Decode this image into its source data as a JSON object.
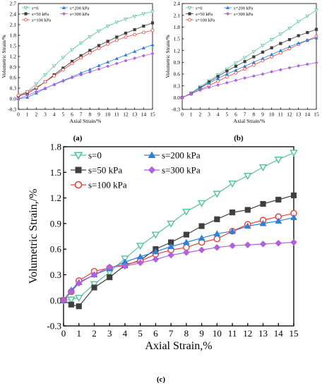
{
  "panel_labels": [
    "(a)",
    "(b)",
    "(c)"
  ],
  "chart_data": [
    {
      "type": "line",
      "panel": "(a)",
      "title": "",
      "xlabel": "Axial Strain/%",
      "ylabel": "Volumetric Strain/%",
      "xlim": [
        0,
        15
      ],
      "ylim": [
        -0.3,
        2.7
      ],
      "xticks": [
        0,
        1,
        2,
        3,
        4,
        5,
        6,
        7,
        8,
        9,
        10,
        11,
        12,
        13,
        14,
        15
      ],
      "yticks": [
        -0.3,
        0.0,
        0.3,
        0.6,
        0.9,
        1.2,
        1.5,
        1.8,
        2.1,
        2.4,
        2.7
      ],
      "ytick_labels": [
        "-0.3",
        "0.0",
        "0.3",
        "0.6",
        "0.9",
        "1.2",
        "1.5",
        "1.8",
        "2.1",
        "2.4",
        "2.7"
      ],
      "grid": false,
      "legend": {
        "placement": "top-left",
        "columns": 2,
        "order": [
          0,
          3,
          1,
          4,
          2
        ]
      },
      "series": [
        {
          "name": "s=0",
          "marker": "triangle-down-open",
          "color": "#55c39a",
          "x": [
            0,
            1,
            2,
            3,
            4,
            5,
            6,
            7,
            8,
            9,
            10,
            11,
            12,
            13,
            14,
            15
          ],
          "y": [
            0.05,
            0.2,
            0.42,
            0.68,
            0.93,
            1.17,
            1.39,
            1.58,
            1.76,
            1.92,
            2.06,
            2.17,
            2.26,
            2.34,
            2.41,
            2.47
          ]
        },
        {
          "name": "s=50 kPa",
          "marker": "square-filled",
          "color": "#3f3f3f",
          "x": [
            0,
            1,
            2,
            3,
            4,
            5,
            6,
            7,
            8,
            9,
            10,
            11,
            12,
            13,
            14,
            15
          ],
          "y": [
            0.08,
            0.15,
            0.3,
            0.48,
            0.68,
            0.87,
            1.06,
            1.22,
            1.37,
            1.51,
            1.63,
            1.75,
            1.86,
            1.96,
            2.06,
            2.15
          ]
        },
        {
          "name": "s=100 kPa",
          "marker": "circle-open",
          "color": "#e8413c",
          "x": [
            0,
            1,
            2,
            3,
            4,
            5,
            6,
            7,
            8,
            9,
            10,
            11,
            12,
            13,
            14,
            15
          ],
          "y": [
            0.1,
            0.2,
            0.32,
            0.48,
            0.65,
            0.82,
            1.0,
            1.16,
            1.3,
            1.43,
            1.55,
            1.66,
            1.75,
            1.82,
            1.88,
            1.94
          ]
        },
        {
          "name": "s=200 kPa",
          "marker": "triangle-up-filled",
          "color": "#2f7fd8",
          "x": [
            0,
            1,
            2,
            3,
            4,
            5,
            6,
            7,
            8,
            9,
            10,
            11,
            12,
            13,
            14,
            15
          ],
          "y": [
            0.0,
            0.04,
            0.16,
            0.29,
            0.41,
            0.52,
            0.62,
            0.73,
            0.83,
            0.94,
            1.04,
            1.14,
            1.24,
            1.34,
            1.44,
            1.53
          ]
        },
        {
          "name": "s=300 kPa",
          "marker": "diamond-filled",
          "color": "#b260e0",
          "x": [
            0,
            1,
            2,
            3,
            4,
            5,
            6,
            7,
            8,
            9,
            10,
            11,
            12,
            13,
            14,
            15
          ],
          "y": [
            0.0,
            0.1,
            0.2,
            0.3,
            0.4,
            0.5,
            0.6,
            0.68,
            0.76,
            0.84,
            0.92,
            1.0,
            1.08,
            1.15,
            1.22,
            1.28
          ]
        }
      ]
    },
    {
      "type": "line",
      "panel": "(b)",
      "title": "",
      "xlabel": "Axial Strain/%",
      "ylabel": "Volumetric Strain/%",
      "xlim": [
        0,
        15
      ],
      "ylim": [
        -0.3,
        2.4
      ],
      "xticks": [
        0,
        1,
        2,
        3,
        4,
        5,
        6,
        7,
        8,
        9,
        10,
        11,
        12,
        13,
        14,
        15
      ],
      "yticks": [
        -0.3,
        0.0,
        0.3,
        0.6,
        0.9,
        1.2,
        1.5,
        1.8,
        2.1,
        2.4
      ],
      "ytick_labels": [
        "-0.3",
        "0.0",
        "0.3",
        "0.6",
        "0.9",
        "1.2",
        "1.5",
        "1.8",
        "2.1",
        "2.4"
      ],
      "grid": false,
      "legend": {
        "placement": "top-left",
        "columns": 2,
        "order": [
          0,
          3,
          1,
          4,
          2
        ]
      },
      "series": [
        {
          "name": "s=0",
          "marker": "triangle-down-open",
          "color": "#55c39a",
          "x": [
            0,
            1,
            2,
            3,
            4,
            5,
            6,
            7,
            8,
            9,
            10,
            11,
            12,
            13,
            14,
            15
          ],
          "y": [
            0.0,
            0.12,
            0.28,
            0.43,
            0.58,
            0.73,
            0.88,
            1.02,
            1.17,
            1.33,
            1.48,
            1.62,
            1.77,
            1.94,
            2.08,
            2.23
          ]
        },
        {
          "name": "s=50 kPa",
          "marker": "square-filled",
          "color": "#3f3f3f",
          "x": [
            0,
            1,
            2,
            3,
            4,
            5,
            6,
            7,
            8,
            9,
            10,
            11,
            12,
            13,
            14,
            15
          ],
          "y": [
            0.0,
            0.1,
            0.25,
            0.4,
            0.54,
            0.68,
            0.8,
            0.92,
            1.04,
            1.16,
            1.27,
            1.38,
            1.48,
            1.58,
            1.66,
            1.74
          ]
        },
        {
          "name": "s=100 kPa",
          "marker": "circle-open",
          "color": "#e8413c",
          "x": [
            0,
            1,
            2,
            3,
            4,
            5,
            6,
            7,
            8,
            9,
            10,
            11,
            12,
            13,
            14,
            15
          ],
          "y": [
            0.0,
            0.09,
            0.2,
            0.31,
            0.42,
            0.53,
            0.63,
            0.73,
            0.83,
            0.94,
            1.04,
            1.14,
            1.25,
            1.36,
            1.46,
            1.56
          ]
        },
        {
          "name": "s=200 kPa",
          "marker": "triangle-up-filled",
          "color": "#2f7fd8",
          "x": [
            0,
            1,
            2,
            3,
            4,
            5,
            6,
            7,
            8,
            9,
            10,
            11,
            12,
            13,
            14,
            15
          ],
          "y": [
            0.0,
            0.1,
            0.24,
            0.37,
            0.49,
            0.6,
            0.7,
            0.8,
            0.9,
            1.0,
            1.1,
            1.2,
            1.3,
            1.39,
            1.46,
            1.52
          ]
        },
        {
          "name": "s=300 kPa",
          "marker": "diamond-filled",
          "color": "#b260e0",
          "x": [
            0,
            1,
            2,
            3,
            4,
            5,
            6,
            7,
            8,
            9,
            10,
            11,
            12,
            13,
            14,
            15
          ],
          "y": [
            0.0,
            0.1,
            0.19,
            0.26,
            0.32,
            0.38,
            0.44,
            0.5,
            0.55,
            0.6,
            0.66,
            0.71,
            0.76,
            0.81,
            0.85,
            0.89
          ]
        }
      ]
    },
    {
      "type": "line",
      "panel": "(c)",
      "title": "",
      "xlabel": "Axial Strain,%",
      "ylabel": "Volumetric Strain,/%",
      "xlim": [
        0,
        15
      ],
      "ylim": [
        -0.3,
        1.8
      ],
      "xticks": [
        0,
        1,
        2,
        3,
        4,
        5,
        6,
        7,
        8,
        9,
        10,
        11,
        12,
        13,
        14,
        15
      ],
      "yticks": [
        -0.3,
        0.0,
        0.3,
        0.6,
        0.9,
        1.2,
        1.5,
        1.8
      ],
      "ytick_labels": [
        "-0.3",
        "0.0",
        "0.3",
        "0.6",
        "0.9",
        "1.2",
        "1.5",
        "1.8"
      ],
      "grid": false,
      "legend": {
        "placement": "top-left",
        "columns": 2,
        "order": [
          0,
          3,
          1,
          4,
          2
        ]
      },
      "series": [
        {
          "name": "s=0",
          "marker": "triangle-down-open",
          "color": "#55c39a",
          "x": [
            0,
            0.5,
            1,
            2,
            3,
            4,
            5,
            6,
            7,
            8,
            9,
            10,
            11,
            12,
            13,
            14,
            15
          ],
          "y": [
            0.0,
            0.01,
            0.03,
            0.19,
            0.33,
            0.49,
            0.64,
            0.77,
            0.9,
            1.04,
            1.14,
            1.25,
            1.37,
            1.46,
            1.56,
            1.65,
            1.73
          ]
        },
        {
          "name": "s=50 kPa",
          "marker": "square-filled",
          "color": "#3f3f3f",
          "x": [
            0,
            0.5,
            1,
            2,
            3,
            4,
            5,
            6,
            7,
            8,
            9,
            10,
            11,
            12,
            13,
            14,
            15
          ],
          "y": [
            0.0,
            -0.05,
            -0.07,
            0.15,
            0.27,
            0.41,
            0.47,
            0.6,
            0.68,
            0.77,
            0.87,
            0.95,
            1.03,
            1.06,
            1.13,
            1.18,
            1.23
          ]
        },
        {
          "name": "s=100 kPa",
          "marker": "circle-open",
          "color": "#e8413c",
          "x": [
            0,
            0.5,
            1,
            2,
            3,
            4,
            5,
            6,
            7,
            8,
            9,
            10,
            11,
            12,
            13,
            14,
            15
          ],
          "y": [
            0.0,
            0.1,
            0.23,
            0.34,
            0.38,
            0.42,
            0.46,
            0.54,
            0.59,
            0.62,
            0.68,
            0.72,
            0.81,
            0.89,
            0.94,
            0.98,
            1.02
          ]
        },
        {
          "name": "s=200 kPa",
          "marker": "triangle-up-filled",
          "color": "#2f7fd8",
          "x": [
            0,
            0.5,
            1,
            2,
            3,
            4,
            5,
            6,
            7,
            8,
            9,
            10,
            11,
            12,
            13,
            14,
            15
          ],
          "y": [
            0.0,
            0.12,
            0.21,
            0.3,
            0.37,
            0.45,
            0.51,
            0.57,
            0.63,
            0.68,
            0.73,
            0.78,
            0.81,
            0.87,
            0.9,
            0.93,
            0.97
          ]
        },
        {
          "name": "s=300 kPa",
          "marker": "diamond-filled",
          "color": "#b260e0",
          "x": [
            0,
            0.5,
            1,
            2,
            3,
            4,
            5,
            6,
            7,
            8,
            9,
            10,
            11,
            12,
            13,
            14,
            15
          ],
          "y": [
            0.0,
            0.1,
            0.2,
            0.3,
            0.39,
            0.4,
            0.44,
            0.48,
            0.53,
            0.56,
            0.59,
            0.62,
            0.64,
            0.65,
            0.66,
            0.67,
            0.68
          ]
        }
      ]
    }
  ]
}
